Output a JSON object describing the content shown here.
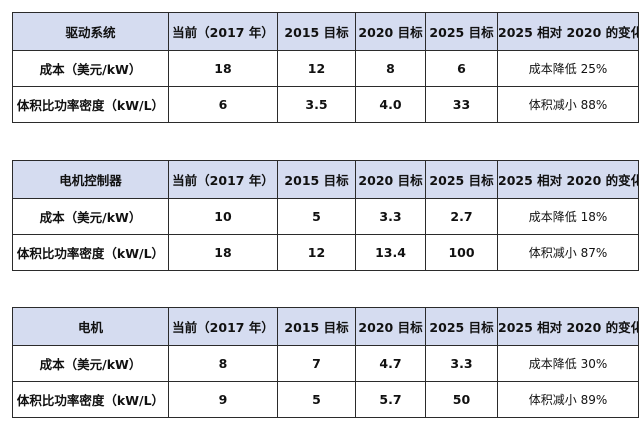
{
  "columns": [
    "当前（2017 年）",
    "2015 目标",
    "2020 目标",
    "2025 目标",
    "2025 相对 2020 的变化"
  ],
  "tables": [
    {
      "name": "驱动系统",
      "rows": [
        {
          "label": "成本（美元/kW）",
          "cells": [
            "18",
            "12",
            "8",
            "6",
            "成本降低 25%"
          ]
        },
        {
          "label": "体积比功率密度（kW/L）",
          "cells": [
            "6",
            "3.5",
            "4.0",
            "33",
            "体积减小 88%"
          ]
        }
      ]
    },
    {
      "name": "电机控制器",
      "rows": [
        {
          "label": "成本（美元/kW）",
          "cells": [
            "10",
            "5",
            "3.3",
            "2.7",
            "成本降低 18%"
          ]
        },
        {
          "label": "体积比功率密度（kW/L）",
          "cells": [
            "18",
            "12",
            "13.4",
            "100",
            "体积减小 87%"
          ]
        }
      ]
    },
    {
      "name": "电机",
      "rows": [
        {
          "label": "成本（美元/kW）",
          "cells": [
            "8",
            "7",
            "4.7",
            "3.3",
            "成本降低 30%"
          ]
        },
        {
          "label": "体积比功率密度（kW/L）",
          "cells": [
            "9",
            "5",
            "5.7",
            "50",
            "体积减小 89%"
          ]
        }
      ]
    }
  ]
}
